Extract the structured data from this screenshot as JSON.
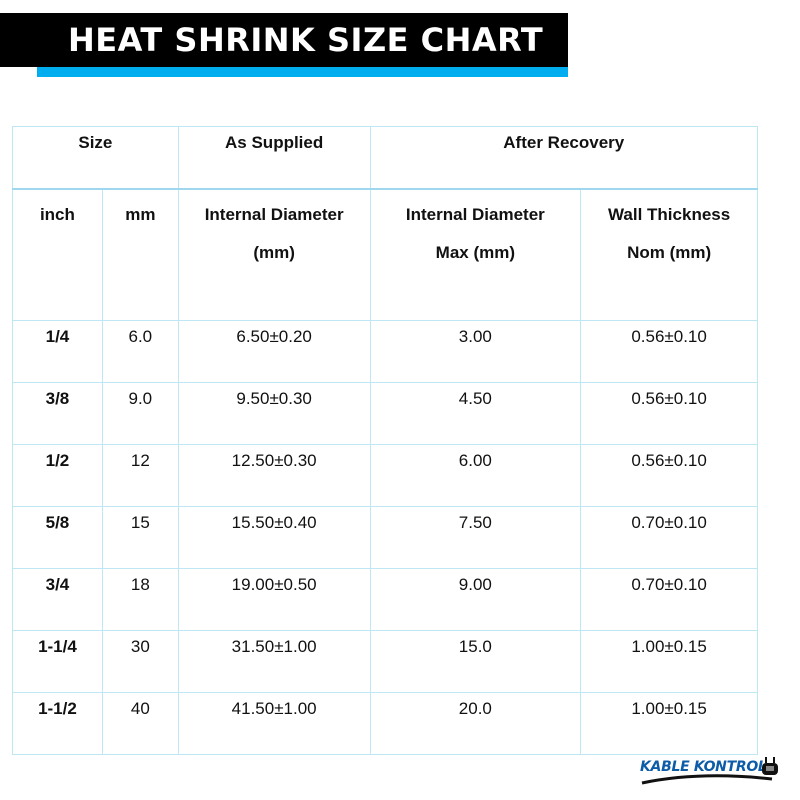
{
  "title": "HEAT SHRINK SIZE CHART",
  "colors": {
    "banner": "#000000",
    "stripe": "#00aeef",
    "border": "#bfe6f3",
    "logo": "#0d5ca8"
  },
  "table": {
    "group_headers": [
      "Size",
      "As Supplied",
      "After Recovery"
    ],
    "columns": [
      [
        "inch"
      ],
      [
        "mm"
      ],
      [
        "Internal Diameter",
        "(mm)"
      ],
      [
        "Internal Diameter",
        "Max (mm)"
      ],
      [
        "Wall Thickness",
        "Nom (mm)"
      ]
    ],
    "rows": [
      [
        "1/4",
        "6.0",
        "6.50±0.20",
        "3.00",
        "0.56±0.10"
      ],
      [
        "3/8",
        "9.0",
        "9.50±0.30",
        "4.50",
        "0.56±0.10"
      ],
      [
        "1/2",
        "12",
        "12.50±0.30",
        "6.00",
        "0.56±0.10"
      ],
      [
        "5/8",
        "15",
        "15.50±0.40",
        "7.50",
        "0.70±0.10"
      ],
      [
        "3/4",
        "18",
        "19.00±0.50",
        "9.00",
        "0.70±0.10"
      ],
      [
        "1-1/4",
        "30",
        "31.50±1.00",
        "15.0",
        "1.00±0.15"
      ],
      [
        "1-1/2",
        "40",
        "41.50±1.00",
        "20.0",
        "1.00±0.15"
      ]
    ]
  },
  "logo": {
    "text": "KABLE KONTROL",
    "icon": "plug-icon"
  }
}
